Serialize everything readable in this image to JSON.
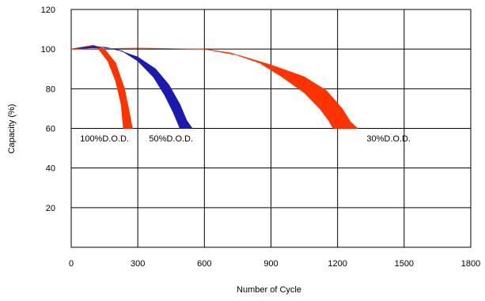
{
  "chart_data": {
    "type": "area",
    "title": "",
    "xlabel": "Number of Cycle",
    "ylabel": "Capacity (%)",
    "xlim": [
      0,
      1800
    ],
    "ylim": [
      0,
      120
    ],
    "x_ticks": [
      0,
      300,
      600,
      900,
      1200,
      1500,
      1800
    ],
    "y_ticks": [
      20,
      40,
      60,
      80,
      100,
      120
    ],
    "x_tick_labels": [
      "0",
      "300",
      "600",
      "900",
      "1200",
      "1500",
      "1800"
    ],
    "y_tick_labels": [
      "20",
      "40",
      "60",
      "80",
      "100",
      "120"
    ],
    "grid": true,
    "legend": "none",
    "series": [
      {
        "name": "100% D.O.D.",
        "color": "#ff3300",
        "upper": [
          [
            0,
            100
          ],
          [
            50,
            101
          ],
          [
            100,
            102
          ],
          [
            150,
            100
          ],
          [
            200,
            93
          ],
          [
            240,
            80
          ],
          [
            262,
            68
          ],
          [
            275,
            60
          ]
        ],
        "lower": [
          [
            0,
            100
          ],
          [
            60,
            101
          ],
          [
            120,
            100.5
          ],
          [
            165,
            94
          ],
          [
            200,
            84
          ],
          [
            225,
            72
          ],
          [
            235,
            60
          ]
        ]
      },
      {
        "name": "50% D.O.D.",
        "color": "#1a1ab0",
        "upper": [
          [
            0,
            100
          ],
          [
            100,
            101.5
          ],
          [
            200,
            100
          ],
          [
            300,
            96
          ],
          [
            380,
            90
          ],
          [
            440,
            82
          ],
          [
            490,
            72
          ],
          [
            520,
            64
          ],
          [
            545,
            60
          ]
        ],
        "lower": [
          [
            0,
            100
          ],
          [
            150,
            101
          ],
          [
            230,
            99
          ],
          [
            300,
            94
          ],
          [
            370,
            86
          ],
          [
            420,
            77
          ],
          [
            460,
            68
          ],
          [
            490,
            60
          ]
        ]
      },
      {
        "name": "30% D.O.D.",
        "color": "#ff3300",
        "upper": [
          [
            0,
            100
          ],
          [
            300,
            100.5
          ],
          [
            600,
            100
          ],
          [
            750,
            97
          ],
          [
            900,
            92
          ],
          [
            1050,
            86
          ],
          [
            1150,
            79
          ],
          [
            1220,
            70
          ],
          [
            1260,
            63
          ],
          [
            1290,
            60
          ]
        ],
        "lower": [
          [
            0,
            100
          ],
          [
            300,
            100.5
          ],
          [
            600,
            100
          ],
          [
            720,
            98
          ],
          [
            850,
            93
          ],
          [
            950,
            86
          ],
          [
            1050,
            78
          ],
          [
            1120,
            70
          ],
          [
            1160,
            64
          ],
          [
            1180,
            60
          ]
        ]
      }
    ],
    "annotations": [
      {
        "text": "100%D.O.D.",
        "x": 150,
        "y": 55
      },
      {
        "text": "50%D.O.D.",
        "x": 450,
        "y": 55
      },
      {
        "text": "30%D.O.D.",
        "x": 1430,
        "y": 55
      }
    ]
  }
}
